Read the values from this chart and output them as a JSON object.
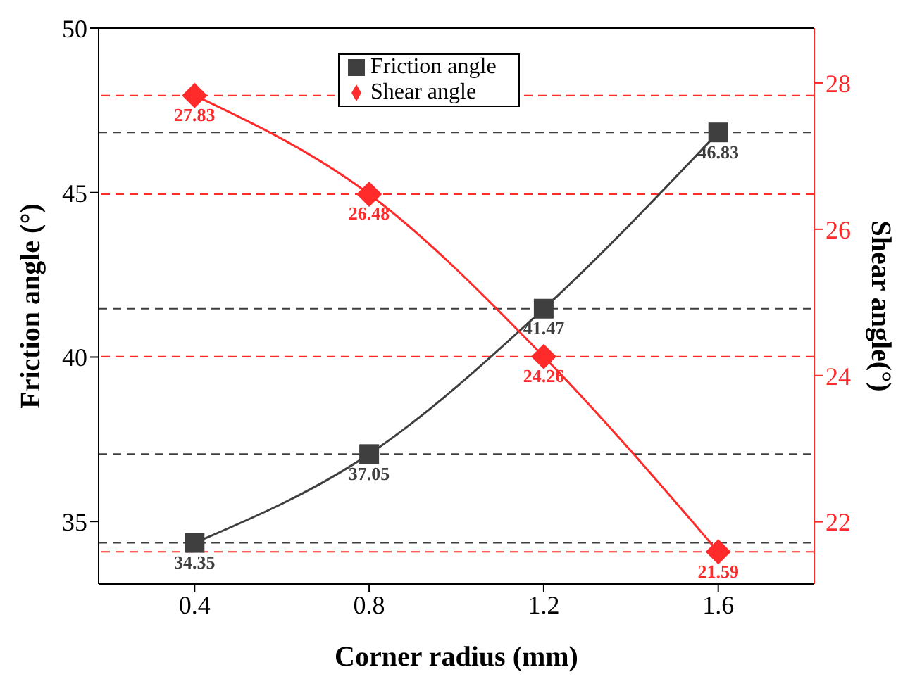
{
  "chart_data": {
    "type": "line",
    "xlabel": "Corner radius (mm)",
    "ylabel": "Friction angle (°)",
    "y2label": "Shear angle(°)",
    "x": [
      0.4,
      0.8,
      1.2,
      1.6
    ],
    "series": [
      {
        "name": "Friction angle",
        "color": "#3f3f3f",
        "values": [
          34.35,
          37.05,
          41.47,
          46.83
        ],
        "marker": "square"
      },
      {
        "name": "Shear angle",
        "color": "#ff2a2a",
        "values": [
          27.83,
          26.48,
          24.26,
          21.59
        ],
        "axis": "y2",
        "marker": "diamond"
      }
    ],
    "xlim": [
      0.18,
      1.82
    ],
    "xticks": [
      0.4,
      0.8,
      1.2,
      1.6
    ],
    "ylim": [
      33.1,
      50
    ],
    "yticks": [
      35,
      40,
      45,
      50
    ],
    "y2lim": [
      21.15,
      28.75
    ],
    "y2ticks": [
      22,
      24,
      26,
      28
    ],
    "ref_lines": [
      {
        "axis": "y",
        "value": 34.35,
        "color": "#3f3f3f",
        "line_style": "dashed"
      },
      {
        "axis": "y",
        "value": 37.05,
        "color": "#3f3f3f",
        "line_style": "dashed"
      },
      {
        "axis": "y",
        "value": 41.47,
        "color": "#3f3f3f",
        "line_style": "dashed"
      },
      {
        "axis": "y",
        "value": 46.83,
        "color": "#3f3f3f",
        "line_style": "dashed"
      },
      {
        "axis": "y2",
        "value": 27.83,
        "color": "#ff2a2a",
        "line_style": "dashed"
      },
      {
        "axis": "y2",
        "value": 26.48,
        "color": "#ff2a2a",
        "line_style": "dashed"
      },
      {
        "axis": "y2",
        "value": 24.26,
        "color": "#ff2a2a",
        "line_style": "dashed"
      },
      {
        "axis": "y2",
        "value": 21.59,
        "color": "#ff2a2a",
        "line_style": "dashed"
      }
    ],
    "data_labels": true,
    "legend": "top",
    "grid": false,
    "line_style": "solid"
  }
}
